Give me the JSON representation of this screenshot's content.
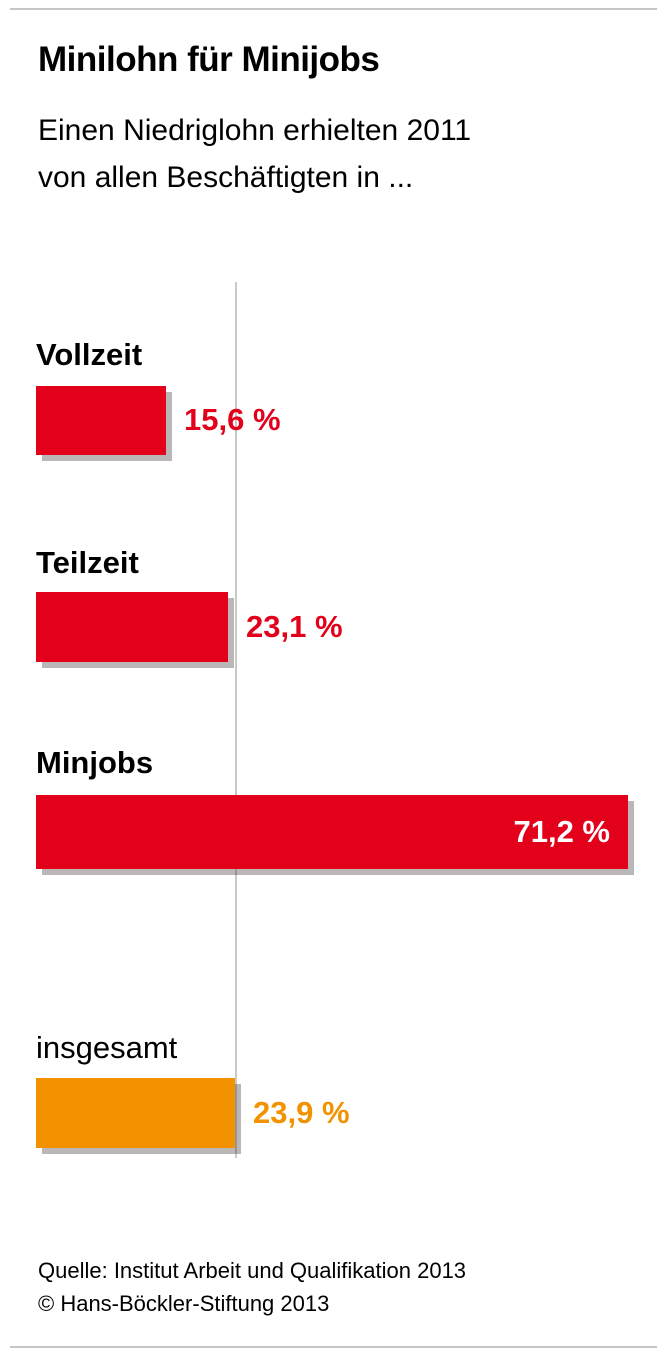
{
  "header": {
    "title": "Minilohn für Minijobs",
    "subtitle_line1": "Einen Niedriglohn erhielten 2011",
    "subtitle_line2": "von allen Beschäftigten in ..."
  },
  "chart_data": {
    "type": "bar",
    "orientation": "horizontal",
    "title": "Minilohn für Minijobs",
    "subtitle": "Einen Niedriglohn erhielten 2011 von allen Beschäftigten in ...",
    "categories": [
      "Vollzeit",
      "Teilzeit",
      "Minjobs",
      "insgesamt"
    ],
    "values": [
      15.6,
      23.1,
      71.2,
      23.9
    ],
    "value_labels": [
      "15,6 %",
      "23,1 %",
      "71,2 %",
      "23,9 %"
    ],
    "unit": "%",
    "bar_colors": [
      "#e2001a",
      "#e2001a",
      "#e2001a",
      "#f39200"
    ],
    "value_label_colors": [
      "#e2001a",
      "#e2001a",
      "#ffffff",
      "#f39200"
    ],
    "reference_line_value": 23.9,
    "xlim": [
      0,
      75
    ],
    "grid": false,
    "legend": false
  },
  "footer": {
    "source": "Quelle: Institut Arbeit und Qualifikation 2013",
    "copyright": "© Hans-Böckler-Stiftung 2013"
  }
}
